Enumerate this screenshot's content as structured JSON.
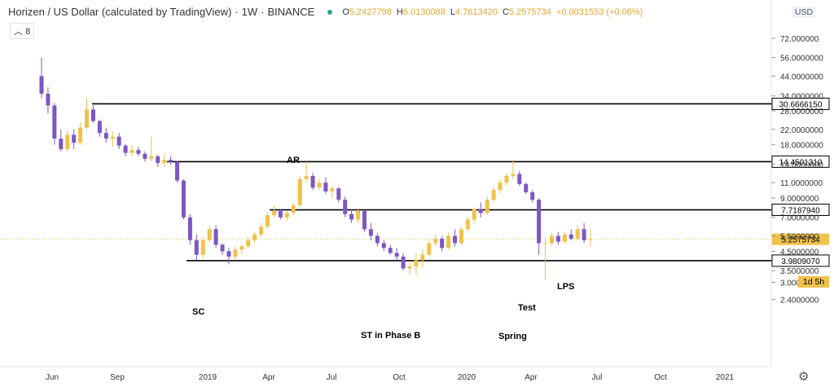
{
  "header": {
    "title": "Horizen / US Dollar (calculated by TradingView)",
    "interval": "1W",
    "exchange": "BINANCE",
    "ohlc": [
      {
        "k": "O",
        "v": "5.2427798"
      },
      {
        "k": "H",
        "v": "6.0130088"
      },
      {
        "k": "L",
        "v": "4.7613420"
      },
      {
        "k": "C",
        "v": "5.2575734"
      },
      {
        "k": "",
        "v": "+0.0031553 (+0.06%)"
      }
    ]
  },
  "collapse_count": "8",
  "currency": "USD",
  "countdown": "1d 5h",
  "colors": {
    "up": "#f0c14b",
    "down": "#7e57c2",
    "line": "#000000",
    "price_line": "#f0c14b"
  },
  "chart_data": {
    "type": "candlestick",
    "log_scale": true,
    "x_ticks": [
      "Jun",
      "Sep",
      "2019",
      "Apr",
      "Jul",
      "Oct",
      "2020",
      "Apr",
      "Jul",
      "Oct",
      "2021"
    ],
    "y_ticks": [
      "72.000000",
      "56.0000000",
      "44.0000000",
      "34.0000000",
      "28.0000000",
      "22.0000000",
      "18.0000000",
      "14.0000000",
      "11.0000000",
      "9.0000000",
      "7.0000000",
      "5.5000000",
      "4.5000000",
      "3.5000000",
      "3.0000000",
      "2.4000000"
    ],
    "ylim": [
      2.0,
      72.0
    ],
    "price_levels": [
      "30.6666150",
      "14.4501310",
      "7.7187940",
      "3.9809070"
    ],
    "current_price": "5.2575734",
    "annotations": [
      "AR",
      "SC",
      "ST in Phase B",
      "Test",
      "Spring",
      "LPS"
    ],
    "candles": [
      [
        44.0,
        56.0,
        33.0,
        35.0
      ],
      [
        35.0,
        38.0,
        27.0,
        30.0
      ],
      [
        30.0,
        31.0,
        18.0,
        19.5
      ],
      [
        19.5,
        22.0,
        16.5,
        17.0
      ],
      [
        17.0,
        21.5,
        16.5,
        20.5
      ],
      [
        20.5,
        22.0,
        17.0,
        18.5
      ],
      [
        18.5,
        24.0,
        18.0,
        22.5
      ],
      [
        22.5,
        33.0,
        22.0,
        28.5
      ],
      [
        28.5,
        30.0,
        24.0,
        24.5
      ],
      [
        24.5,
        25.0,
        20.0,
        21.0
      ],
      [
        21.0,
        22.5,
        18.5,
        19.5
      ],
      [
        19.5,
        21.5,
        17.5,
        20.0
      ],
      [
        20.0,
        21.0,
        17.0,
        17.8
      ],
      [
        17.8,
        18.2,
        15.5,
        16.2
      ],
      [
        16.2,
        18.0,
        15.5,
        16.8
      ],
      [
        16.8,
        17.5,
        15.5,
        16.0
      ],
      [
        16.0,
        16.5,
        14.5,
        15.0
      ],
      [
        15.0,
        20.0,
        14.5,
        15.5
      ],
      [
        15.5,
        15.8,
        13.5,
        14.2
      ],
      [
        14.2,
        16.0,
        13.5,
        14.8
      ],
      [
        14.8,
        15.5,
        13.8,
        14.4
      ],
      [
        14.4,
        14.6,
        11.0,
        11.3
      ],
      [
        11.3,
        11.5,
        6.8,
        7.0
      ],
      [
        7.0,
        7.3,
        4.9,
        5.2
      ],
      [
        5.2,
        5.6,
        4.0,
        4.3
      ],
      [
        4.3,
        5.4,
        4.1,
        5.2
      ],
      [
        5.2,
        6.3,
        5.0,
        6.0
      ],
      [
        6.0,
        6.3,
        4.7,
        4.9
      ],
      [
        4.9,
        5.0,
        4.3,
        4.5
      ],
      [
        4.5,
        4.7,
        3.8,
        4.2
      ],
      [
        4.2,
        4.8,
        4.0,
        4.6
      ],
      [
        4.6,
        4.9,
        4.3,
        4.8
      ],
      [
        4.8,
        5.4,
        4.7,
        5.2
      ],
      [
        5.2,
        5.8,
        5.0,
        5.6
      ],
      [
        5.6,
        6.5,
        5.4,
        6.2
      ],
      [
        6.2,
        7.5,
        6.0,
        7.2
      ],
      [
        7.2,
        8.2,
        7.0,
        7.6
      ],
      [
        7.6,
        7.8,
        6.8,
        7.0
      ],
      [
        7.0,
        7.6,
        6.7,
        7.4
      ],
      [
        7.4,
        8.5,
        7.2,
        8.2
      ],
      [
        8.2,
        12.0,
        8.0,
        11.5
      ],
      [
        11.5,
        14.4,
        11.0,
        12.0
      ],
      [
        12.0,
        12.5,
        10.0,
        10.3
      ],
      [
        10.3,
        11.5,
        10.0,
        11.0
      ],
      [
        11.0,
        11.8,
        9.5,
        9.8
      ],
      [
        9.8,
        10.5,
        9.0,
        10.2
      ],
      [
        10.2,
        10.4,
        8.5,
        8.8
      ],
      [
        8.8,
        9.2,
        7.0,
        7.3
      ],
      [
        7.3,
        7.8,
        6.5,
        6.8
      ],
      [
        6.8,
        7.9,
        6.5,
        7.6
      ],
      [
        7.6,
        7.7,
        5.8,
        6.0
      ],
      [
        6.0,
        6.5,
        5.2,
        5.5
      ],
      [
        5.5,
        5.7,
        4.8,
        5.0
      ],
      [
        5.0,
        5.2,
        4.5,
        4.7
      ],
      [
        4.7,
        4.9,
        4.3,
        4.4
      ],
      [
        4.4,
        4.7,
        4.0,
        4.2
      ],
      [
        4.2,
        4.4,
        3.5,
        3.6
      ],
      [
        3.6,
        3.9,
        3.3,
        3.7
      ],
      [
        3.7,
        4.4,
        3.3,
        4.0
      ],
      [
        4.0,
        4.6,
        3.6,
        4.3
      ],
      [
        4.3,
        5.2,
        4.2,
        5.0
      ],
      [
        5.0,
        5.6,
        4.8,
        5.3
      ],
      [
        5.3,
        5.5,
        4.5,
        4.7
      ],
      [
        4.7,
        5.7,
        4.6,
        5.5
      ],
      [
        5.5,
        6.0,
        4.8,
        5.0
      ],
      [
        5.0,
        6.2,
        4.9,
        6.0
      ],
      [
        6.0,
        7.0,
        5.8,
        6.8
      ],
      [
        6.8,
        8.0,
        6.5,
        7.8
      ],
      [
        7.8,
        8.5,
        7.0,
        7.4
      ],
      [
        7.4,
        9.2,
        7.2,
        8.8
      ],
      [
        8.8,
        10.5,
        8.5,
        10.0
      ],
      [
        10.0,
        11.5,
        9.6,
        11.0
      ],
      [
        11.0,
        12.5,
        10.6,
        12.0
      ],
      [
        12.0,
        14.8,
        11.5,
        12.3
      ],
      [
        12.3,
        12.8,
        10.5,
        10.8
      ],
      [
        10.8,
        11.0,
        9.5,
        9.7
      ],
      [
        9.7,
        10.0,
        8.5,
        8.8
      ],
      [
        8.8,
        9.0,
        4.3,
        5.0
      ],
      [
        5.0,
        5.4,
        3.1,
        5.0
      ],
      [
        5.0,
        5.7,
        4.8,
        5.5
      ],
      [
        5.5,
        5.8,
        4.9,
        5.1
      ],
      [
        5.1,
        5.8,
        5.0,
        5.6
      ],
      [
        5.6,
        6.0,
        5.2,
        5.3
      ],
      [
        5.3,
        6.3,
        5.2,
        6.0
      ],
      [
        6.0,
        6.5,
        5.0,
        5.2
      ],
      [
        5.24,
        6.01,
        4.76,
        5.26
      ]
    ]
  }
}
